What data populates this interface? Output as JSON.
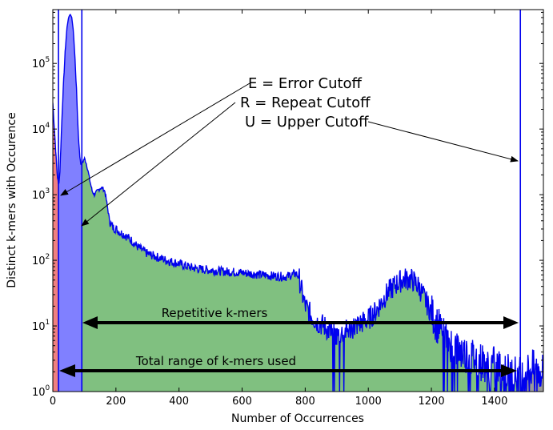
{
  "chart_data": {
    "type": "area",
    "xlabel": "Number of Occurrences",
    "ylabel": "Distinct k-mers with Occurence",
    "xlim": [
      0,
      1555
    ],
    "ylim_log10": [
      0,
      5.82
    ],
    "y_scale": "log",
    "x_ticks": [
      0,
      200,
      400,
      600,
      800,
      1000,
      1200,
      1400
    ],
    "x_tick_labels": [
      "0",
      "200",
      "400",
      "600",
      "800",
      "1000",
      "1200",
      "1400"
    ],
    "y_ticks": [
      0,
      1,
      2,
      3,
      4,
      5
    ],
    "y_tick_labels": [
      [
        "10",
        "0"
      ],
      [
        "10",
        "1"
      ],
      [
        "10",
        "2"
      ],
      [
        "10",
        "3"
      ],
      [
        "10",
        "4"
      ],
      [
        "10",
        "5"
      ]
    ],
    "grid": false,
    "cutoffs": {
      "error": 18,
      "repeat": 92,
      "upper": 1482
    },
    "region_colors": {
      "error": "#f08080",
      "repeat": "#8080ff",
      "main": "#80c080",
      "beyond": "#999999",
      "line": "#0000ee"
    },
    "curve": [
      [
        0,
        4.4
      ],
      [
        5,
        4.0
      ],
      [
        10,
        3.6
      ],
      [
        14,
        3.3
      ],
      [
        18,
        3.15
      ],
      [
        22,
        3.3
      ],
      [
        26,
        3.8
      ],
      [
        30,
        4.3
      ],
      [
        35,
        4.8
      ],
      [
        40,
        5.25
      ],
      [
        45,
        5.55
      ],
      [
        50,
        5.7
      ],
      [
        55,
        5.75
      ],
      [
        60,
        5.7
      ],
      [
        65,
        5.5
      ],
      [
        70,
        5.1
      ],
      [
        75,
        4.6
      ],
      [
        80,
        4.0
      ],
      [
        85,
        3.6
      ],
      [
        90,
        3.45
      ],
      [
        95,
        3.5
      ],
      [
        100,
        3.55
      ],
      [
        105,
        3.5
      ],
      [
        110,
        3.4
      ],
      [
        118,
        3.2
      ],
      [
        125,
        3.05
      ],
      [
        132,
        3.0
      ],
      [
        140,
        3.05
      ],
      [
        150,
        3.1
      ],
      [
        158,
        3.1
      ],
      [
        165,
        3.05
      ],
      [
        172,
        2.85
      ],
      [
        180,
        2.6
      ],
      [
        190,
        2.5
      ],
      [
        200,
        2.48
      ],
      [
        215,
        2.42
      ],
      [
        230,
        2.38
      ],
      [
        250,
        2.3
      ],
      [
        270,
        2.2
      ],
      [
        300,
        2.1
      ],
      [
        330,
        2.05
      ],
      [
        360,
        2.0
      ],
      [
        400,
        1.95
      ],
      [
        430,
        1.9
      ],
      [
        460,
        1.87
      ],
      [
        500,
        1.85
      ],
      [
        540,
        1.83
      ],
      [
        580,
        1.82
      ],
      [
        620,
        1.8
      ],
      [
        660,
        1.78
      ],
      [
        700,
        1.76
      ],
      [
        740,
        1.75
      ],
      [
        770,
        1.8
      ],
      [
        780,
        1.75
      ],
      [
        790,
        1.5
      ],
      [
        800,
        1.3
      ],
      [
        820,
        1.15
      ],
      [
        840,
        1.05
      ],
      [
        860,
        1.0
      ],
      [
        880,
        0.9
      ],
      [
        900,
        0.85
      ],
      [
        920,
        0.9
      ],
      [
        940,
        0.95
      ],
      [
        960,
        1.0
      ],
      [
        980,
        1.05
      ],
      [
        1000,
        1.1
      ],
      [
        1020,
        1.2
      ],
      [
        1040,
        1.35
      ],
      [
        1060,
        1.5
      ],
      [
        1080,
        1.6
      ],
      [
        1100,
        1.68
      ],
      [
        1120,
        1.72
      ],
      [
        1140,
        1.7
      ],
      [
        1160,
        1.6
      ],
      [
        1180,
        1.4
      ],
      [
        1200,
        1.2
      ],
      [
        1220,
        1.0
      ],
      [
        1240,
        0.85
      ],
      [
        1260,
        0.75
      ],
      [
        1280,
        0.65
      ],
      [
        1300,
        0.6
      ],
      [
        1320,
        0.55
      ],
      [
        1340,
        0.5
      ],
      [
        1360,
        0.45
      ],
      [
        1380,
        0.42
      ],
      [
        1400,
        0.4
      ],
      [
        1420,
        0.35
      ],
      [
        1440,
        0.3
      ],
      [
        1460,
        0.28
      ],
      [
        1480,
        0.25
      ],
      [
        1500,
        0.3
      ],
      [
        1520,
        0.35
      ],
      [
        1540,
        0.3
      ],
      [
        1555,
        0.3
      ]
    ],
    "annotations": {
      "error_label": "E = Error Cutoff",
      "repeat_label": "R = Repeat Cutoff",
      "upper_label": "U = Upper Cutoff",
      "repetitive_label": "Repetitive k-mers",
      "total_range_label": "Total range of k-mers used"
    }
  }
}
